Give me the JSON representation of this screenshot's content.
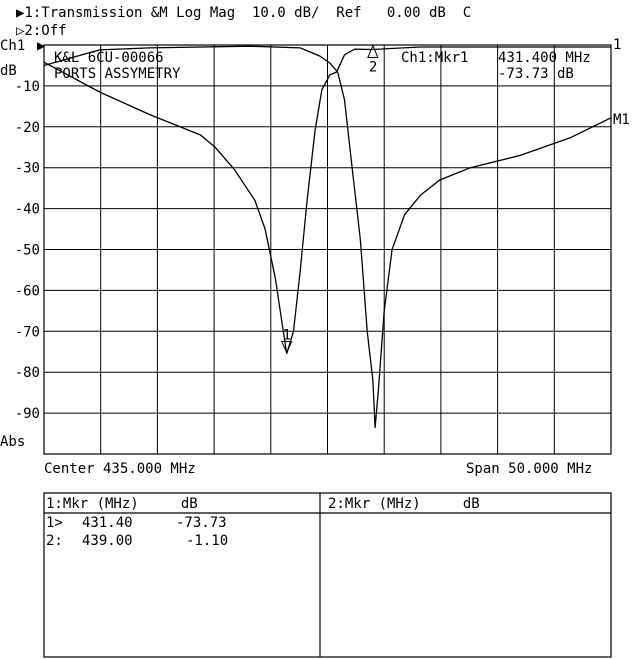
{
  "header": {
    "line1": "▶1:Transmission &M Log Mag  10.0 dB/  Ref   0.00 dB  C",
    "line2": "▷2:Off"
  },
  "axis": {
    "channel_label": "Ch1",
    "unit_label": "dB",
    "bottom_label": "Abs",
    "center": "Center 435.000 MHz",
    "span": "Span 50.000 MHz"
  },
  "annotation": {
    "title1": "K&L 6CU-00066",
    "title2": "PORTS ASSYMETRY",
    "marker_label": "Ch1:Mkr1",
    "marker_freq": "431.400 MHz",
    "marker_value": "-73.73 dB"
  },
  "chart_data": {
    "type": "line",
    "xlabel": "",
    "ylabel": "dB",
    "xlim": [
      410,
      460
    ],
    "ylim": [
      -100,
      0
    ],
    "grid": true,
    "yticks": [
      "-10",
      "-20",
      "-30",
      "-40",
      "-50",
      "-60",
      "-70",
      "-80",
      "-90"
    ],
    "series": [
      {
        "name": "1",
        "color": "#000000",
        "x": [
          410,
          414.9,
          419.3,
          423.8,
          425.1,
          426.8,
          428.6,
          429.5,
          430.4,
          431.1,
          431.4,
          432.0,
          432.6,
          433.2,
          433.9,
          434.5,
          435.2,
          435.8,
          436.5,
          437.4,
          438.9,
          443.2,
          450.2,
          460
        ],
        "y": [
          -4.2,
          -11.5,
          -17,
          -22,
          -25,
          -30.5,
          -38,
          -45,
          -57,
          -70,
          -75.5,
          -70,
          -55,
          -38,
          -21,
          -11,
          -7.3,
          -6.6,
          -2.4,
          -1.0,
          -1.1,
          -0.5,
          -0.5,
          -0.5
        ]
      },
      {
        "name": "M1",
        "color": "#000000",
        "x": [
          410,
          412.3,
          414.9,
          419.3,
          428.2,
          432.6,
          434.3,
          435.2,
          435.9,
          436.5,
          437.2,
          437.9,
          438.5,
          439.0,
          439.2,
          439.5,
          440.0,
          440.7,
          441.8,
          443.2,
          444.9,
          447.6,
          452,
          456.4,
          460
        ],
        "y": [
          -5,
          -3.2,
          -1.2,
          -0.7,
          -0.3,
          -0.7,
          -2.7,
          -4.4,
          -6.6,
          -13.4,
          -30.6,
          -47.7,
          -70,
          -82,
          -93.6,
          -84,
          -65,
          -50,
          -41.5,
          -36.7,
          -33,
          -30,
          -27,
          -22.7,
          -17.8
        ]
      }
    ],
    "markers": [
      {
        "label": "1",
        "freq": 431.4,
        "value": -73.73,
        "shape": "down-triangle"
      },
      {
        "label": "2",
        "freq": 439.0,
        "value": -1.1,
        "shape": "up-triangle"
      }
    ]
  },
  "marker_table": {
    "left_header": "1:Mkr (MHz)     dB",
    "right_header": "2:Mkr (MHz)     dB",
    "rows": [
      {
        "id": "1>",
        "freq": "431.40",
        "value": "-73.73"
      },
      {
        "id": "2:",
        "freq": "439.00",
        "value": "-1.10"
      }
    ]
  }
}
